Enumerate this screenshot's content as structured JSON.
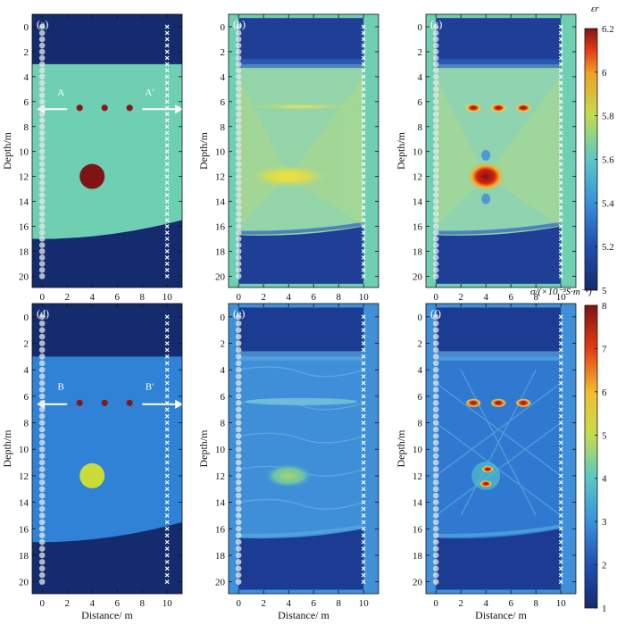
{
  "figure": {
    "panels": [
      {
        "id": "a",
        "label": "(a)",
        "type": "model",
        "property": "permittivity"
      },
      {
        "id": "b",
        "label": "(b)",
        "type": "inversion",
        "property": "permittivity"
      },
      {
        "id": "c",
        "label": "(c)",
        "type": "inversion",
        "property": "permittivity"
      },
      {
        "id": "d",
        "label": "(d)",
        "type": "model",
        "property": "conductivity"
      },
      {
        "id": "e",
        "label": "(e)",
        "type": "inversion",
        "property": "conductivity"
      },
      {
        "id": "f",
        "label": "(f)",
        "type": "inversion",
        "property": "conductivity"
      }
    ],
    "section_labels": {
      "a_left": "A",
      "a_right": "A′",
      "d_left": "B",
      "d_right": "B′"
    },
    "xlabel": "Distance/ m",
    "ylabel": "Depth/m",
    "x_ticks": [
      "0",
      "2",
      "4",
      "6",
      "8",
      "10"
    ],
    "y_ticks": [
      "0",
      "2",
      "4",
      "6",
      "8",
      "10",
      "12",
      "14",
      "16",
      "18",
      "20"
    ],
    "colorbar_eps": {
      "label": "εr",
      "ticks": [
        "6.2",
        "6",
        "5.8",
        "5.6",
        "5.4",
        "5.2",
        "5"
      ]
    },
    "colorbar_sigma": {
      "label": "σ/(×10⁻³S·m⁻¹)",
      "ticks": [
        "8",
        "7",
        "6",
        "5",
        "4",
        "3",
        "2",
        "1"
      ]
    }
  },
  "chart_data": [
    {
      "type": "heatmap",
      "panel": "a",
      "title": "(a)",
      "xlabel": "Distance/ m",
      "ylabel": "Depth/m",
      "xlim": [
        -0.8,
        11.2
      ],
      "ylim": [
        20.9,
        -1
      ],
      "colorbar": {
        "label": "εr",
        "range": [
          5.0,
          6.2
        ]
      },
      "background_value": 5.0,
      "layer": {
        "value": 5.45,
        "top_depth": 3,
        "bottom_depth_at_x0": 17,
        "bottom_depth_at_x11": 15.5
      },
      "anomalies": [
        {
          "shape": "disk",
          "x": 4,
          "depth": 12,
          "radius": 1,
          "value": 6.2
        },
        {
          "shape": "dot",
          "x": 3,
          "depth": 6.5,
          "value": 6.2
        },
        {
          "shape": "dot",
          "x": 5,
          "depth": 6.5,
          "value": 6.2
        },
        {
          "shape": "dot",
          "x": 7,
          "depth": 6.5,
          "value": 6.2
        }
      ],
      "sources": {
        "x": 0,
        "depths_from": 0,
        "depths_to": 20,
        "spacing": 0.5
      },
      "receivers": {
        "x": 10,
        "depths_from": 0,
        "depths_to": 20,
        "spacing": 0.5
      }
    },
    {
      "type": "heatmap",
      "panel": "b",
      "title": "(b)",
      "colorbar": {
        "label": "εr",
        "range": [
          5.0,
          6.2
        ]
      },
      "recovered_layer_value": 5.5,
      "recovered_disk_peak": 5.85,
      "recovered_dots_peak": 5.65
    },
    {
      "type": "heatmap",
      "panel": "c",
      "title": "(c)",
      "colorbar": {
        "label": "εr",
        "range": [
          5.0,
          6.2
        ]
      },
      "recovered_layer_value": 5.45,
      "recovered_disk_peak": 6.2,
      "recovered_dots_peak": 5.9
    },
    {
      "type": "heatmap",
      "panel": "d",
      "title": "(d)",
      "colorbar": {
        "label": "σ/(×10⁻³S·m⁻¹)",
        "range": [
          1,
          8
        ]
      },
      "background_value": 1,
      "layer": {
        "value": 2.6,
        "top_depth": 3,
        "bottom_depth_at_x0": 17,
        "bottom_depth_at_x11": 15.5
      },
      "anomalies": [
        {
          "shape": "disk",
          "x": 4,
          "depth": 12,
          "radius": 1,
          "value": 4.5
        },
        {
          "shape": "dot",
          "x": 3,
          "depth": 6.5,
          "value": 8
        },
        {
          "shape": "dot",
          "x": 5,
          "depth": 6.5,
          "value": 8
        },
        {
          "shape": "dot",
          "x": 7,
          "depth": 6.5,
          "value": 8
        }
      ]
    },
    {
      "type": "heatmap",
      "panel": "e",
      "title": "(e)",
      "colorbar": {
        "label": "σ/(×10⁻³S·m⁻¹)",
        "range": [
          1,
          8
        ]
      },
      "recovered_layer_value": 2.7,
      "recovered_disk_peak": 3.5
    },
    {
      "type": "heatmap",
      "panel": "f",
      "title": "(f)",
      "colorbar": {
        "label": "σ/(×10⁻³S·m⁻¹)",
        "range": [
          1,
          8
        ]
      },
      "recovered_layer_value": 2.6,
      "recovered_disk_peak": 7.5,
      "recovered_dots_peak": 7.5
    }
  ],
  "colors": {
    "deep_blue": "#142b6e",
    "eps_layer": "#6fcfb2",
    "sig_layer": "#2f82d6",
    "dark_red": "#801414",
    "yellow_green": "#c8dc3a"
  }
}
